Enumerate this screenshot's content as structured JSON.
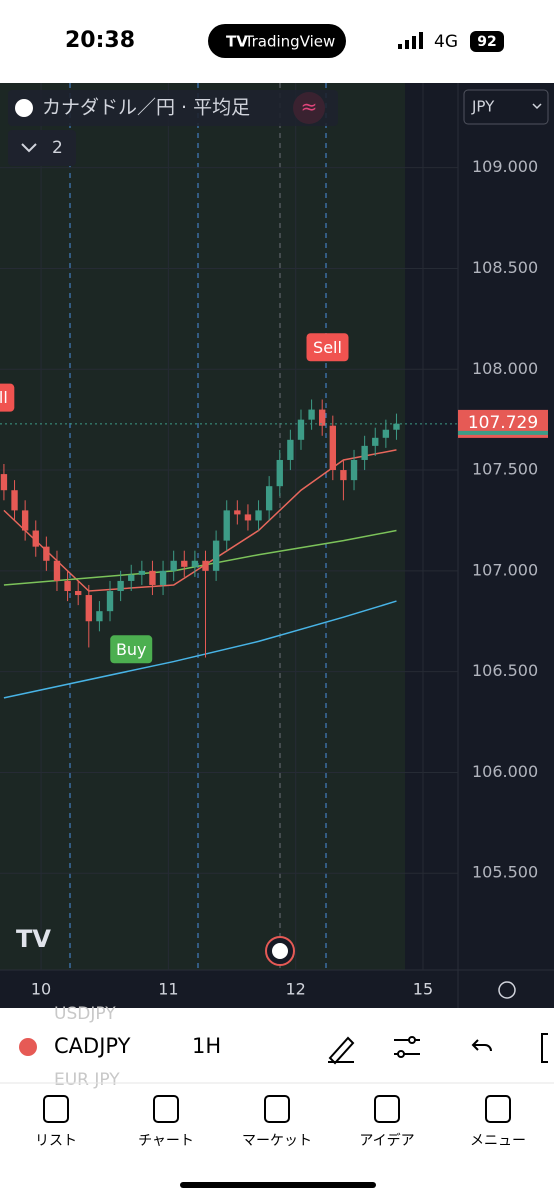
{
  "status_bar": {
    "time": "20:38",
    "app": "TradingView",
    "network": "4G",
    "battery": 92
  },
  "chart_data": {
    "type": "candlestick",
    "title": "カナダドル／円 · 平均足",
    "indicator_count": 2,
    "currency": "JPY",
    "x": [
      -7,
      -5,
      -3,
      -1,
      1,
      3,
      5,
      7,
      9,
      11,
      13,
      15,
      17,
      19,
      21,
      23,
      25,
      27,
      29,
      31,
      33,
      35,
      37,
      39,
      41,
      43,
      45,
      47,
      49,
      51,
      53,
      55,
      57,
      59,
      61,
      63,
      65,
      67
    ],
    "open": [
      107.48,
      107.4,
      107.3,
      107.2,
      107.12,
      107.05,
      106.95,
      106.9,
      106.88,
      106.75,
      106.8,
      106.9,
      106.95,
      106.98,
      107.0,
      106.93,
      107.0,
      107.05,
      107.02,
      107.05,
      107.0,
      107.15,
      107.3,
      107.28,
      107.25,
      107.3,
      107.42,
      107.55,
      107.65,
      107.75,
      107.8,
      107.72,
      107.5,
      107.45,
      107.55,
      107.62,
      107.66,
      107.7
    ],
    "high": [
      107.53,
      107.45,
      107.35,
      107.25,
      107.17,
      107.1,
      107.0,
      106.95,
      106.93,
      106.85,
      106.95,
      107.0,
      107.03,
      107.05,
      107.05,
      107.05,
      107.1,
      107.1,
      107.1,
      107.1,
      107.2,
      107.35,
      107.35,
      107.33,
      107.35,
      107.47,
      107.6,
      107.7,
      107.8,
      107.85,
      107.85,
      107.77,
      107.55,
      107.6,
      107.67,
      107.71,
      107.75,
      107.78
    ],
    "low": [
      107.35,
      107.25,
      107.15,
      107.07,
      107.0,
      106.9,
      106.85,
      106.83,
      106.62,
      106.7,
      106.75,
      106.85,
      106.9,
      106.93,
      106.88,
      106.88,
      106.95,
      106.97,
      106.97,
      106.57,
      106.95,
      107.1,
      107.23,
      107.2,
      107.2,
      107.25,
      107.37,
      107.5,
      107.6,
      107.7,
      107.67,
      107.45,
      107.35,
      107.4,
      107.5,
      107.57,
      107.61,
      107.65
    ],
    "close": [
      107.4,
      107.3,
      107.2,
      107.12,
      107.05,
      106.95,
      106.9,
      106.88,
      106.75,
      106.8,
      106.9,
      106.95,
      106.98,
      107.0,
      106.93,
      107.0,
      107.05,
      107.02,
      107.05,
      107.0,
      107.15,
      107.3,
      107.28,
      107.25,
      107.3,
      107.42,
      107.55,
      107.65,
      107.75,
      107.8,
      107.72,
      107.5,
      107.45,
      107.55,
      107.62,
      107.66,
      107.7,
      107.73
    ],
    "up_color": "#3d9c87",
    "down_color": "#e65a55",
    "xlim": [
      -7.74,
      78.6
    ],
    "ylim": [
      105.02,
      109.42
    ],
    "yticks": [
      {
        "value": 109,
        "label": "109.000"
      },
      {
        "value": 108.5,
        "label": "108.500"
      },
      {
        "value": 108,
        "label": "108.000"
      },
      {
        "value": 107.5,
        "label": "107.500"
      },
      {
        "value": 107,
        "label": "107.000"
      },
      {
        "value": 106.5,
        "label": "106.500"
      },
      {
        "value": 106,
        "label": "106.000"
      },
      {
        "value": 105.5,
        "label": "105.500"
      }
    ],
    "xticks": [
      {
        "value": 0,
        "label": "10"
      },
      {
        "value": 24,
        "label": "11"
      },
      {
        "value": 48,
        "label": "12"
      },
      {
        "value": 72,
        "label": "15"
      }
    ],
    "last_price": 107.729,
    "lines": [
      {
        "color": "#e8675c",
        "x": [
          -7,
          9,
          25,
          41,
          49,
          57,
          67
        ],
        "values": [
          107.3,
          106.9,
          106.93,
          107.2,
          107.4,
          107.55,
          107.6
        ]
      },
      {
        "color": "#7cc35a",
        "x": [
          -7,
          25,
          41,
          57,
          67
        ],
        "values": [
          106.93,
          107.0,
          107.08,
          107.15,
          107.2
        ]
      },
      {
        "color": "#48b4e6",
        "x": [
          -7,
          25,
          41,
          57,
          67
        ],
        "values": [
          106.37,
          106.55,
          106.65,
          106.77,
          106.85
        ]
      }
    ],
    "signals": [
      {
        "label": "Sell",
        "x": -9,
        "price": 107.75
      },
      {
        "label": "Buy",
        "x": 17,
        "price": 106.72
      },
      {
        "label": "Sell",
        "x": 54,
        "price": 108.0
      }
    ]
  },
  "toolbar": {
    "ghost_above": "USDJPY",
    "symbol": "CADJPY",
    "interval": "1H",
    "ghost_below": "EUR JPY"
  },
  "nav": [
    "リスト",
    "チャート",
    "マーケット",
    "アイデア",
    "メニュー"
  ]
}
